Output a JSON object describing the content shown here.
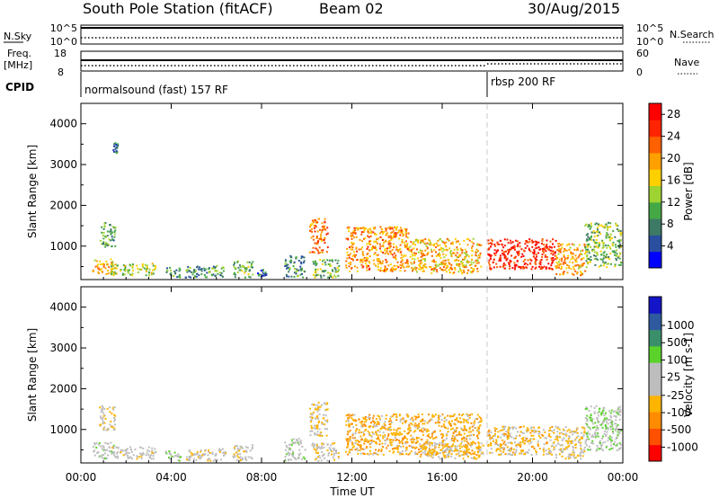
{
  "header": {
    "station": "South Pole Station (fitACF)",
    "beam": "Beam 02",
    "date": "30/Aug/2015"
  },
  "top_panels": {
    "nsky_label": "N.Sky",
    "nsky_ticks": [
      "10^5",
      "10^0"
    ],
    "nsearch_label": "N.Search",
    "nsearch_ticks": [
      "10^5",
      "10^0"
    ],
    "freq_label": "Freq.",
    "freq_unit": "[MHz]",
    "freq_ticks": [
      "18",
      "8"
    ],
    "nave_label": "Nave",
    "nave_ticks": [
      "60",
      "0"
    ],
    "cpid_label": "CPID",
    "cpid_segments": [
      {
        "label": "normalsound (fast) 157 RF",
        "start_hour": 0
      },
      {
        "label": "rbsp 200 RF",
        "start_hour": 18
      }
    ]
  },
  "colors": {
    "power_scale": [
      "#0000ff",
      "#2a4fa0",
      "#3d7a66",
      "#44a845",
      "#9fd331",
      "#ffd000",
      "#ffa000",
      "#ff6000",
      "#ff2400",
      "#ff0000"
    ],
    "velocity_scale": [
      "#ff0000",
      "#ff5000",
      "#ff8c00",
      "#ffb400",
      "#bdbdbd",
      "#bdbdbd",
      "#5ad22a",
      "#3a8f6a",
      "#2f5aa0",
      "#1414c8"
    ],
    "dashed_line": "#c8c8c8"
  },
  "chart_data": [
    {
      "type": "heatmap",
      "name": "power",
      "ylabel": "Slant Range [km]",
      "colorbar_label": "Power [dB]",
      "colorbar_ticks": [
        "4",
        "8",
        "12",
        "16",
        "20",
        "24",
        "28"
      ],
      "zlim": [
        0,
        30
      ],
      "xlim_hours": [
        0,
        24
      ],
      "ylim": [
        180,
        4500
      ],
      "yticks": [
        "1000",
        "2000",
        "3000",
        "4000"
      ],
      "xticks": [
        "00:00",
        "04:00",
        "08:00",
        "12:00",
        "16:00",
        "20:00",
        "00:00"
      ],
      "xlabel": "",
      "clusters": [
        {
          "t": [
            0.5,
            1.5
          ],
          "r": [
            300,
            700
          ],
          "v": 18
        },
        {
          "t": [
            0.8,
            1.5
          ],
          "r": [
            1000,
            1600
          ],
          "v": 10
        },
        {
          "t": [
            1.3,
            3.3
          ],
          "r": [
            300,
            600
          ],
          "v": 14
        },
        {
          "t": [
            1.4,
            1.6
          ],
          "r": [
            3300,
            3550
          ],
          "v": 6
        },
        {
          "t": [
            3.7,
            4.4
          ],
          "r": [
            250,
            500
          ],
          "v": 8
        },
        {
          "t": [
            4.6,
            6.4
          ],
          "r": [
            250,
            550
          ],
          "v": 9
        },
        {
          "t": [
            6.7,
            7.6
          ],
          "r": [
            250,
            650
          ],
          "v": 11
        },
        {
          "t": [
            7.8,
            8.2
          ],
          "r": [
            250,
            450
          ],
          "v": 7
        },
        {
          "t": [
            9.0,
            9.9
          ],
          "r": [
            250,
            800
          ],
          "v": 8
        },
        {
          "t": [
            10.1,
            10.9
          ],
          "r": [
            850,
            1700
          ],
          "v": 22
        },
        {
          "t": [
            10.2,
            11.4
          ],
          "r": [
            250,
            700
          ],
          "v": 12
        },
        {
          "t": [
            11.7,
            14.5
          ],
          "r": [
            400,
            1500
          ],
          "v": 20
        },
        {
          "t": [
            14.5,
            17.7
          ],
          "r": [
            350,
            1200
          ],
          "v": 18
        },
        {
          "t": [
            18.0,
            21.0
          ],
          "r": [
            450,
            1200
          ],
          "v": 26
        },
        {
          "t": [
            21.0,
            22.3
          ],
          "r": [
            300,
            1100
          ],
          "v": 19
        },
        {
          "t": [
            22.3,
            23.9
          ],
          "r": [
            500,
            1600
          ],
          "v": 12
        }
      ]
    },
    {
      "type": "heatmap",
      "name": "velocity",
      "ylabel": "Slant Range [km]",
      "colorbar_label": "Velocity [m s-1]",
      "colorbar_ticks": [
        "-1000",
        "-500",
        "-100",
        "-25",
        "25",
        "100",
        "500",
        "1000"
      ],
      "zlim": [
        -1500,
        1500
      ],
      "xlim_hours": [
        0,
        24
      ],
      "ylim": [
        180,
        4500
      ],
      "yticks": [
        "1000",
        "2000",
        "3000",
        "4000"
      ],
      "xticks": [
        "00:00",
        "04:00",
        "08:00",
        "12:00",
        "16:00",
        "20:00",
        "00:00"
      ],
      "xlabel": "Time UT",
      "clusters": [
        {
          "t": [
            0.5,
            1.5
          ],
          "r": [
            300,
            700
          ],
          "v": 60
        },
        {
          "t": [
            0.8,
            1.5
          ],
          "r": [
            1000,
            1600
          ],
          "v": -200
        },
        {
          "t": [
            1.3,
            3.3
          ],
          "r": [
            300,
            600
          ],
          "v": -60
        },
        {
          "t": [
            3.7,
            4.4
          ],
          "r": [
            250,
            500
          ],
          "v": 200
        },
        {
          "t": [
            4.6,
            6.4
          ],
          "r": [
            250,
            550
          ],
          "v": -120
        },
        {
          "t": [
            6.7,
            7.6
          ],
          "r": [
            250,
            650
          ],
          "v": -150
        },
        {
          "t": [
            9.0,
            9.9
          ],
          "r": [
            250,
            800
          ],
          "v": 150
        },
        {
          "t": [
            10.1,
            10.9
          ],
          "r": [
            850,
            1700
          ],
          "v": -300
        },
        {
          "t": [
            10.2,
            11.4
          ],
          "r": [
            250,
            700
          ],
          "v": -200
        },
        {
          "t": [
            11.7,
            17.7
          ],
          "r": [
            400,
            1400
          ],
          "v": -500
        },
        {
          "t": [
            15.0,
            17.8
          ],
          "r": [
            300,
            700
          ],
          "v": -300
        },
        {
          "t": [
            18.0,
            21.0
          ],
          "r": [
            400,
            1100
          ],
          "v": -400
        },
        {
          "t": [
            21.0,
            22.3
          ],
          "r": [
            300,
            1100
          ],
          "v": -250
        },
        {
          "t": [
            22.3,
            23.9
          ],
          "r": [
            500,
            1600
          ],
          "v": 200
        }
      ]
    }
  ]
}
